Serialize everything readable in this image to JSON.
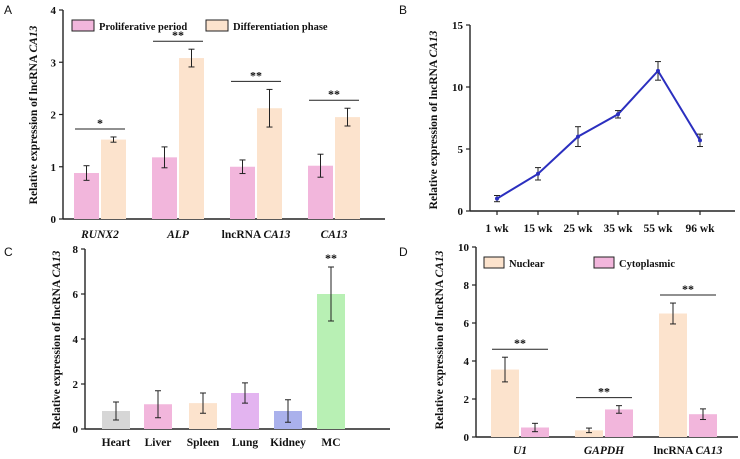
{
  "colors": {
    "pink": "#f2b6dc",
    "cream": "#fce3cd",
    "line": "#2b2fbf",
    "axis": "#222222",
    "error": "#222222",
    "tissue_heart": "#d6d6d6",
    "tissue_liver": "#f2b6dc",
    "tissue_spleen": "#fce3cd",
    "tissue_lung": "#e3b4f0",
    "tissue_kidney": "#aab1ec",
    "tissue_mc": "#b8f0b4"
  },
  "chart_data": [
    {
      "panel": "A",
      "type": "bar",
      "ylabel_prefix": "Relative expression of lncRNA ",
      "ylabel_gene": "CA13",
      "ylim": [
        0,
        4
      ],
      "yticks": [
        "0",
        "1",
        "2",
        "3",
        "4"
      ],
      "categories": [
        {
          "prefix": "",
          "italic": "RUNX2"
        },
        {
          "prefix": "",
          "italic": "ALP"
        },
        {
          "prefix": "lncRNA ",
          "italic": "CA13"
        },
        {
          "prefix": "",
          "italic": "CA13"
        }
      ],
      "series": [
        {
          "name": "Proliferative period",
          "values": [
            0.88,
            1.18,
            1.0,
            1.02
          ],
          "errors": [
            0.14,
            0.2,
            0.13,
            0.22
          ]
        },
        {
          "name": "Differentiation phase",
          "values": [
            1.52,
            3.08,
            2.12,
            1.95
          ],
          "errors": [
            0.05,
            0.17,
            0.36,
            0.17
          ]
        }
      ],
      "significance": [
        "*",
        "**",
        "**",
        "**"
      ]
    },
    {
      "panel": "B",
      "type": "line",
      "ylabel_prefix": "Relative expression of lncRNA ",
      "ylabel_gene": "CA13",
      "ylim": [
        0,
        15
      ],
      "yticks": [
        "0",
        "5",
        "10",
        "15"
      ],
      "categories": [
        "1 wk",
        "15 wk",
        "25 wk",
        "35 wk",
        "55 wk",
        "96 wk"
      ],
      "values": [
        1.0,
        3.0,
        6.0,
        7.8,
        11.3,
        5.7
      ],
      "errors": [
        0.25,
        0.5,
        0.8,
        0.3,
        0.75,
        0.5
      ]
    },
    {
      "panel": "C",
      "type": "bar",
      "ylabel_prefix": "Relative expression of lncRNA ",
      "ylabel_gene": "CA13",
      "ylim": [
        0,
        8
      ],
      "yticks": [
        "0",
        "2",
        "4",
        "6",
        "8"
      ],
      "categories": [
        "Heart",
        "Liver",
        "Spleen",
        "Lung",
        "Kidney",
        "MC"
      ],
      "values": [
        0.8,
        1.1,
        1.15,
        1.6,
        0.8,
        6.0
      ],
      "errors": [
        0.4,
        0.6,
        0.45,
        0.45,
        0.5,
        1.2
      ],
      "significance": [
        "",
        "",
        "",
        "",
        "",
        "**"
      ]
    },
    {
      "panel": "D",
      "type": "bar",
      "ylabel_prefix": "Relative expression of lncRNA ",
      "ylabel_gene": "CA13",
      "ylim": [
        0,
        10
      ],
      "yticks": [
        "0",
        "2",
        "4",
        "6",
        "8",
        "10"
      ],
      "categories": [
        {
          "prefix": "",
          "italic": "U1"
        },
        {
          "prefix": "",
          "italic": "GAPDH"
        },
        {
          "prefix": "lncRNA ",
          "italic": "CA13"
        }
      ],
      "series": [
        {
          "name": "Nuclear",
          "values": [
            3.55,
            0.35,
            6.5
          ],
          "errors": [
            0.65,
            0.12,
            0.55
          ]
        },
        {
          "name": "Cytoplasmic",
          "values": [
            0.5,
            1.45,
            1.2
          ],
          "errors": [
            0.22,
            0.2,
            0.28
          ]
        }
      ],
      "significance": [
        "**",
        "**",
        "**"
      ]
    }
  ]
}
